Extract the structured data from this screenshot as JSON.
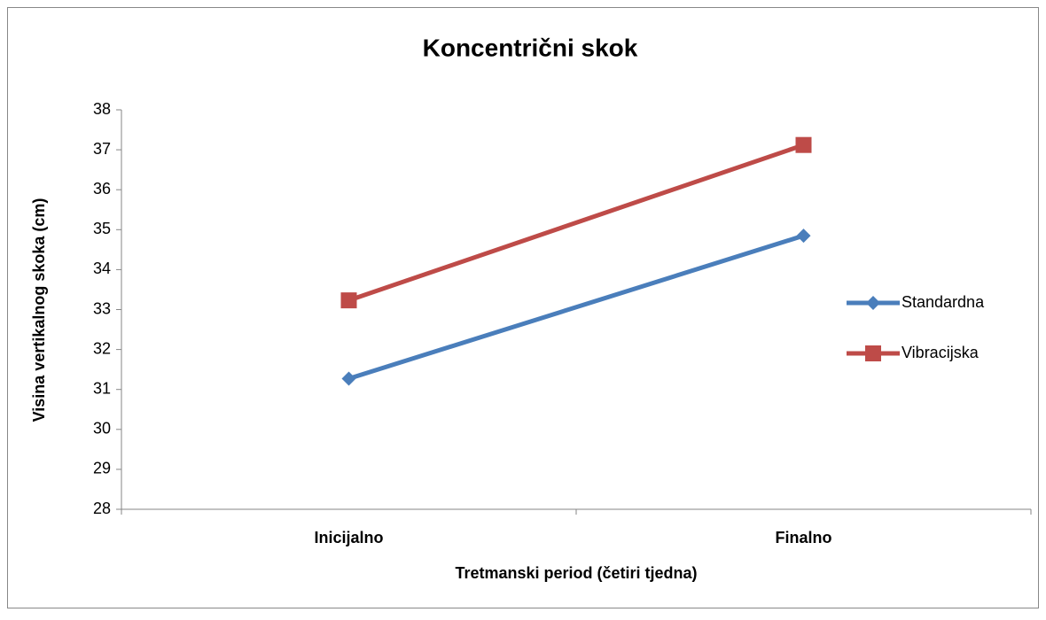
{
  "chart_data": {
    "type": "line",
    "title": "Koncentrični skok",
    "x_label": "Tretmanski period (četiri tjedna)",
    "y_label": "Visina vertikalnog skoka (cm)",
    "categories": [
      "Inicijalno",
      "Finalno"
    ],
    "series": [
      {
        "name": "Standardna",
        "color": "#4a7ebb",
        "marker": "diamond",
        "values": [
          31.27,
          34.85
        ]
      },
      {
        "name": "Vibracijska",
        "color": "#be4b48",
        "marker": "square",
        "values": [
          33.23,
          37.12
        ]
      }
    ],
    "ylim": [
      28,
      38
    ],
    "yticks": [
      28,
      29,
      30,
      31,
      32,
      33,
      34,
      35,
      36,
      37,
      38
    ],
    "grid": false,
    "legend": "right"
  }
}
